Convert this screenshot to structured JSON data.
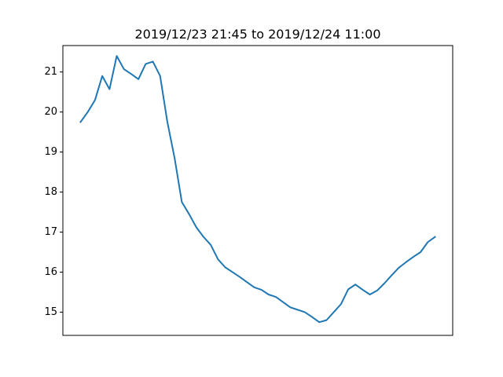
{
  "chart_data": {
    "type": "line",
    "title": "2019/12/23 21:45 to 2019/12/24 11:00",
    "xlabel": "",
    "ylabel": "",
    "x_ticks_shown": false,
    "ylim": [
      14.42,
      21.66
    ],
    "yticks": [
      15,
      16,
      17,
      18,
      19,
      20,
      21
    ],
    "ytick_labels": [
      "15",
      "16",
      "17",
      "18",
      "19",
      "20",
      "21"
    ],
    "grid": false,
    "legend": "none",
    "series": [
      {
        "color": "#1f77b4",
        "values": [
          19.75,
          20.0,
          20.3,
          20.9,
          20.57,
          21.4,
          21.07,
          20.95,
          20.82,
          21.2,
          21.26,
          20.9,
          19.75,
          18.85,
          17.75,
          17.45,
          17.12,
          16.88,
          16.68,
          16.32,
          16.12,
          16.0,
          15.88,
          15.75,
          15.62,
          15.56,
          15.44,
          15.38,
          15.25,
          15.12,
          15.06,
          15.0,
          14.88,
          14.75,
          14.8,
          15.0,
          15.2,
          15.57,
          15.69,
          15.56,
          15.44,
          15.54,
          15.72,
          15.92,
          16.11,
          16.25,
          16.38,
          16.5,
          16.75,
          16.88
        ]
      }
    ]
  }
}
